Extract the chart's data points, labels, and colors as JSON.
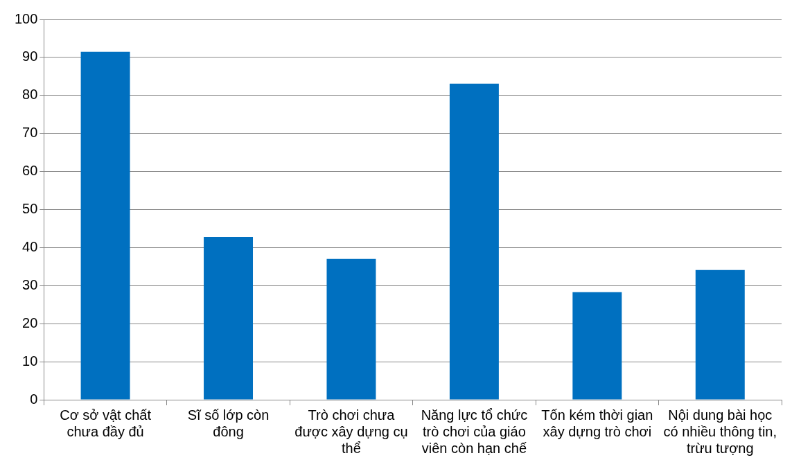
{
  "chart_data": {
    "type": "bar",
    "categories": [
      "Cơ sở vật chất chưa đầy đủ",
      "Sĩ số lớp còn đông",
      "Trò chơi chưa được xây dựng cụ thể",
      "Năng lực tổ chức trò chơi của giáo viên còn hạn chế",
      "Tốn kém thời gian xây dựng trò chơi",
      "Nội dung bài học có nhiều thông tin, trừu tượng"
    ],
    "values": [
      91.5,
      42.8,
      37.0,
      83.1,
      28.3,
      34.1
    ],
    "color": "#0070c0",
    "ylim": [
      0,
      100
    ],
    "yticks": [
      0,
      10,
      20,
      30,
      40,
      50,
      60,
      70,
      80,
      90,
      100
    ],
    "grid": "y",
    "legend": false
  }
}
